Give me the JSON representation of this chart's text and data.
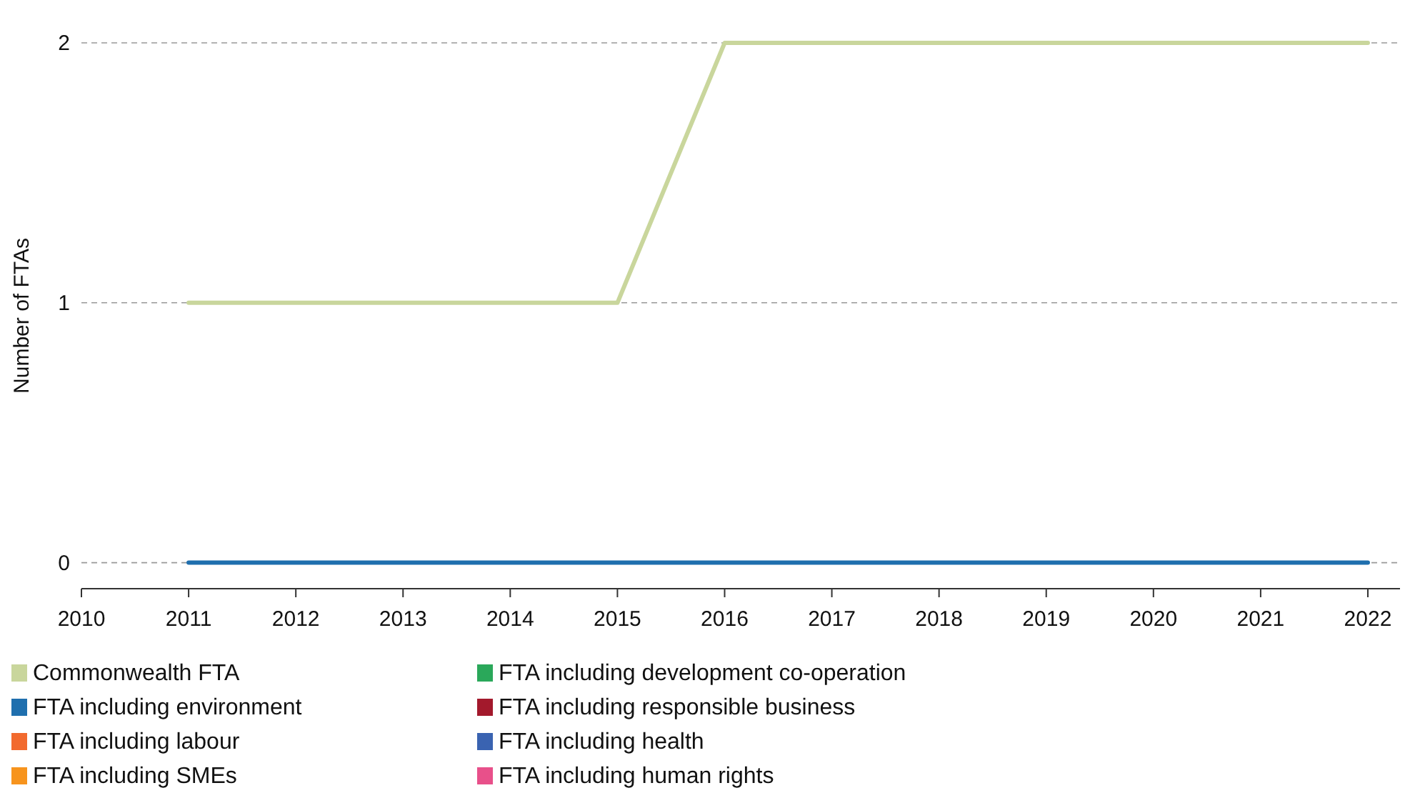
{
  "chart_data": {
    "type": "line",
    "ylabel": "Number of FTAs",
    "x": [
      2011,
      2012,
      2013,
      2014,
      2015,
      2016,
      2017,
      2018,
      2019,
      2020,
      2021,
      2022
    ],
    "xlim": [
      2010,
      2022.3
    ],
    "xticks": [
      2010,
      2011,
      2012,
      2013,
      2014,
      2015,
      2016,
      2017,
      2018,
      2019,
      2020,
      2021,
      2022
    ],
    "ylim": [
      -0.1,
      2
    ],
    "yticks": [
      0,
      1,
      2
    ],
    "grid": "y",
    "legend": "bottom",
    "marker": "none",
    "line_style": "solid",
    "series": [
      {
        "name": "Commonwealth FTA",
        "color": "#c9d69c",
        "values": [
          1,
          1,
          1,
          1,
          1,
          2,
          2,
          2,
          2,
          2,
          2,
          2
        ]
      },
      {
        "name": "FTA including environment",
        "color": "#1f6fae",
        "values": [
          0,
          0,
          0,
          0,
          0,
          0,
          0,
          0,
          0,
          0,
          0,
          0
        ]
      },
      {
        "name": "FTA including labour",
        "color": "#f26a2e",
        "values": [
          null,
          null,
          null,
          null,
          null,
          null,
          null,
          null,
          null,
          null,
          null,
          null
        ]
      },
      {
        "name": "FTA including SMEs",
        "color": "#f7941d",
        "values": [
          null,
          null,
          null,
          null,
          null,
          null,
          null,
          null,
          null,
          null,
          null,
          null
        ]
      },
      {
        "name": "FTA including development co-operation",
        "color": "#2aa85a",
        "values": [
          null,
          null,
          null,
          null,
          null,
          null,
          null,
          null,
          null,
          null,
          null,
          null
        ]
      },
      {
        "name": "FTA including responsible business",
        "color": "#a3192c",
        "values": [
          null,
          null,
          null,
          null,
          null,
          null,
          null,
          null,
          null,
          null,
          null,
          null
        ]
      },
      {
        "name": "FTA including health",
        "color": "#3a63b1",
        "values": [
          null,
          null,
          null,
          null,
          null,
          null,
          null,
          null,
          null,
          null,
          null,
          null
        ]
      },
      {
        "name": "FTA including human rights",
        "color": "#e8508a",
        "values": [
          null,
          null,
          null,
          null,
          null,
          null,
          null,
          null,
          null,
          null,
          null,
          null
        ]
      }
    ]
  }
}
